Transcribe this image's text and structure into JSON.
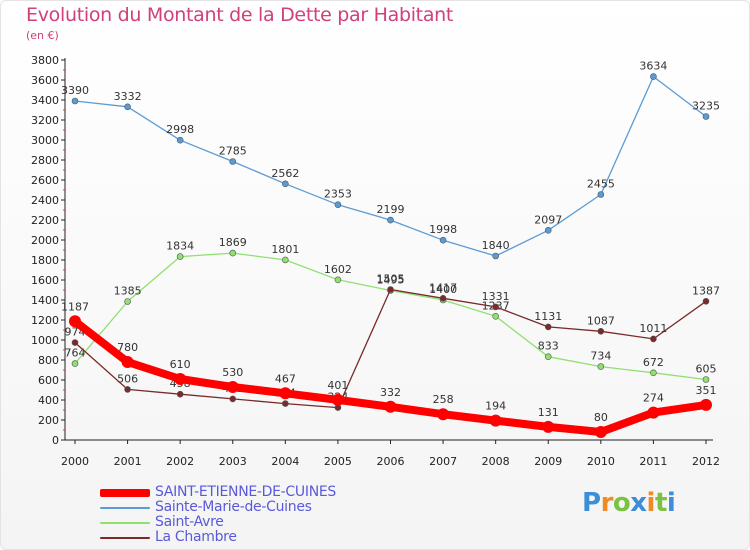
{
  "header": {
    "title": "Evolution du Montant de la Dette par Habitant",
    "subtitle": "(en €)"
  },
  "chart_data": {
    "type": "line",
    "title": "Evolution du Montant de la Dette par Habitant",
    "subtitle": "(en €)",
    "x": [
      "2000",
      "2001",
      "2002",
      "2003",
      "2004",
      "2005",
      "2006",
      "2007",
      "2008",
      "2009",
      "2010",
      "2011",
      "2012"
    ],
    "ylim": [
      0,
      3800
    ],
    "yticks": [
      0,
      200,
      400,
      600,
      800,
      1000,
      1200,
      1400,
      1600,
      1800,
      2000,
      2200,
      2400,
      2600,
      2800,
      3000,
      3200,
      3400,
      3600,
      3800
    ],
    "grid": false,
    "legend_position": "bottom-left",
    "series": [
      {
        "name": "SAINT-ETIENNE-DE-CUINES",
        "color": "#ff0000",
        "values": [
          1187,
          780,
          610,
          530,
          467,
          401,
          332,
          258,
          194,
          131,
          80,
          274,
          351
        ]
      },
      {
        "name": "Sainte-Marie-de-Cuines",
        "color": "#5b9bd5",
        "values": [
          3390,
          3332,
          2998,
          2785,
          2562,
          2353,
          2199,
          1998,
          1840,
          2097,
          2455,
          3634,
          3235
        ]
      },
      {
        "name": "Saint-Avre",
        "color": "#90e070",
        "values": [
          764,
          1385,
          1834,
          1869,
          1801,
          1602,
          1495,
          1400,
          1237,
          833,
          734,
          672,
          605
        ]
      },
      {
        "name": "La Chambre",
        "color": "#7a2a2a",
        "values": [
          974,
          506,
          458,
          411,
          364,
          324,
          1505,
          1417,
          1331,
          1131,
          1087,
          1011,
          1387
        ]
      }
    ]
  },
  "legend": {
    "items": [
      {
        "label": "SAINT-ETIENNE-DE-CUINES",
        "color": "#ff0000",
        "text_color": "#5a5ad8"
      },
      {
        "label": "Sainte-Marie-de-Cuines",
        "color": "#5b9bd5",
        "text_color": "#5a5ad8"
      },
      {
        "label": "Saint-Avre",
        "color": "#90e070",
        "text_color": "#5a5ad8"
      },
      {
        "label": "La Chambre",
        "color": "#7a2a2a",
        "text_color": "#5a5ad8"
      }
    ]
  },
  "logo": {
    "letters": [
      "P",
      "r",
      "o",
      "x",
      "i",
      "t",
      "i"
    ],
    "colors": [
      "#3a8fd8",
      "#f08a24",
      "#7cc242",
      "#3a8fd8",
      "#f08a24",
      "#7cc242",
      "#3a8fd8"
    ]
  }
}
